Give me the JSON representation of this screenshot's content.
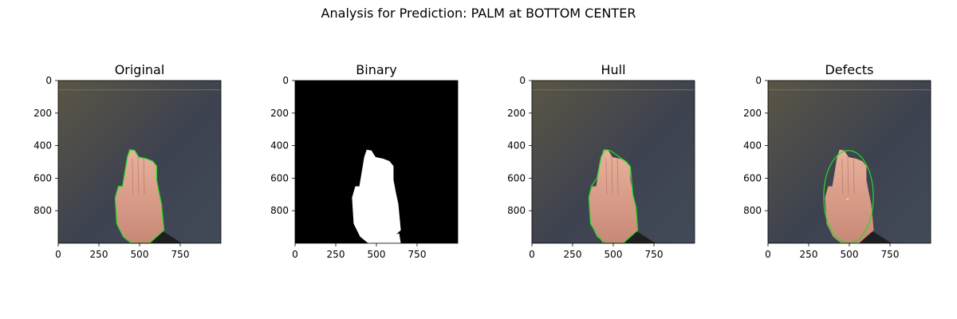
{
  "figure": {
    "suptitle": "Analysis for Prediction: PALM at BOTTOM CENTER"
  },
  "chart_data": [
    {
      "type": "image",
      "title": "Original",
      "xticks": [
        0,
        250,
        500,
        750
      ],
      "yticks": [
        0,
        200,
        400,
        600,
        800
      ],
      "xlim": [
        0,
        1000
      ],
      "ylim": [
        1000,
        0
      ],
      "overlay": "contour",
      "overlay_color": "#22dd22"
    },
    {
      "type": "image",
      "title": "Binary",
      "xticks": [
        0,
        250,
        500,
        750
      ],
      "yticks": [
        0,
        200,
        400,
        600,
        800
      ],
      "xlim": [
        0,
        1000
      ],
      "ylim": [
        1000,
        0
      ],
      "overlay": "mask",
      "overlay_color": "#ffffff"
    },
    {
      "type": "image",
      "title": "Hull",
      "xticks": [
        0,
        250,
        500,
        750
      ],
      "yticks": [
        0,
        200,
        400,
        600,
        800
      ],
      "xlim": [
        0,
        1000
      ],
      "ylim": [
        1000,
        0
      ],
      "overlay": "hull",
      "overlay_color": "#22dd22"
    },
    {
      "type": "image",
      "title": "Defects",
      "xticks": [
        0,
        250,
        500,
        750
      ],
      "yticks": [
        0,
        200,
        400,
        600,
        800
      ],
      "xlim": [
        0,
        1000
      ],
      "ylim": [
        1000,
        0
      ],
      "overlay": "ellipse",
      "overlay_color": "#22dd22"
    }
  ],
  "colors": {
    "board_top": "#5a5544",
    "board_bottom": "#3c4452",
    "hand": "#d99a86",
    "contour": "#22dd22",
    "background_mask": "#000000"
  }
}
